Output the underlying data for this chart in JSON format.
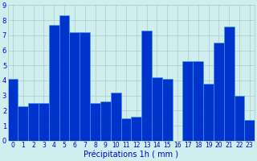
{
  "values": [
    4.1,
    2.3,
    2.5,
    2.5,
    7.7,
    8.3,
    7.2,
    7.2,
    2.5,
    2.6,
    3.2,
    1.5,
    1.6,
    7.3,
    4.2,
    4.1,
    0.0,
    5.3,
    5.3,
    3.8,
    6.5,
    7.6,
    3.0,
    1.4
  ],
  "xlabels": [
    "0",
    "1",
    "2",
    "3",
    "4",
    "5",
    "6",
    "7",
    "8",
    "9",
    "10",
    "11",
    "12",
    "13",
    "14",
    "15",
    "16",
    "17",
    "18",
    "19",
    "20",
    "21",
    "22",
    "23"
  ],
  "bar_color": "#0033cc",
  "bar_edge_color": "#3399ff",
  "background_color": "#d0eeee",
  "grid_color": "#aacccc",
  "xlabel": "Précipitations 1h ( mm )",
  "ylim": [
    0,
    9
  ],
  "yticks": [
    0,
    1,
    2,
    3,
    4,
    5,
    6,
    7,
    8,
    9
  ],
  "xlabel_color": "#0000cc",
  "tick_color": "#0000cc",
  "tick_fontsize": 5.5,
  "ylabel_fontsize": 6,
  "xlabel_fontsize": 7
}
